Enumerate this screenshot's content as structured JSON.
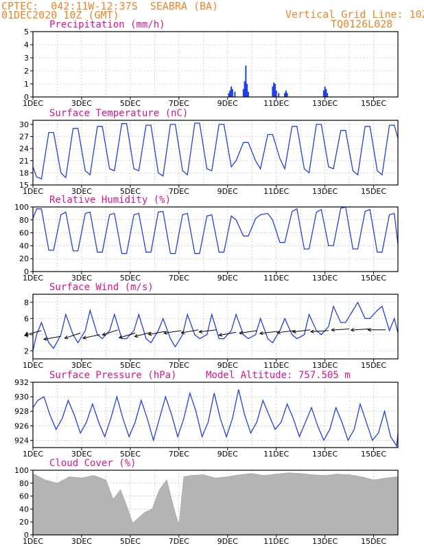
{
  "header": {
    "line1_left": "CPTEC:  042:11W-12:37S  SEABRA (BA)",
    "line2_left": "01DEC2020 10Z (GMT)",
    "line1_right": "Vertical Grid Line: 10Z",
    "line2_right": "TQ0126L028"
  },
  "x_tick_labels": [
    "1DEC",
    "3DEC",
    "5DEC",
    "7DEC",
    "9DEC",
    "11DEC",
    "13DEC",
    "15DEC"
  ],
  "colors": {
    "line": "#1f3fe0",
    "title": "#d4148c",
    "header": "#e8862a",
    "cloud": "#b4b4b4",
    "precip": "#1f3fe0"
  },
  "chart_data": [
    {
      "id": "precip",
      "type": "bar",
      "title": "Precipitation (mm/h)",
      "ylim": [
        0,
        5
      ],
      "yticks": [
        0,
        1,
        2,
        3,
        4,
        5
      ],
      "x_unit": "days since 01DEC 10Z",
      "bars": [
        [
          8.05,
          0.3
        ],
        [
          8.1,
          0.5
        ],
        [
          8.15,
          0.8
        ],
        [
          8.2,
          0.6
        ],
        [
          8.3,
          0.4
        ],
        [
          8.65,
          0.6
        ],
        [
          8.7,
          1.2
        ],
        [
          8.75,
          2.4
        ],
        [
          8.8,
          1.0
        ],
        [
          8.85,
          0.4
        ],
        [
          9.85,
          0.8
        ],
        [
          9.9,
          1.1
        ],
        [
          9.95,
          1.0
        ],
        [
          10.0,
          0.5
        ],
        [
          10.1,
          0.3
        ],
        [
          10.35,
          0.3
        ],
        [
          10.4,
          0.5
        ],
        [
          10.45,
          0.3
        ],
        [
          11.95,
          0.5
        ],
        [
          12.0,
          0.8
        ],
        [
          12.05,
          0.6
        ],
        [
          12.1,
          0.3
        ]
      ]
    },
    {
      "id": "temp",
      "type": "line",
      "title": "Surface Temperature (nC)",
      "ylim": [
        15,
        31
      ],
      "yticks": [
        15,
        18,
        21,
        24,
        27,
        30
      ],
      "x": [
        0,
        0.15,
        0.35,
        0.65,
        0.85,
        1.15,
        1.35,
        1.65,
        1.85,
        2.15,
        2.35,
        2.65,
        2.85,
        3.15,
        3.35,
        3.65,
        3.85,
        4.15,
        4.35,
        4.65,
        4.85,
        5.15,
        5.35,
        5.65,
        5.85,
        6.15,
        6.35,
        6.65,
        6.85,
        7.15,
        7.35,
        7.65,
        7.85,
        8.15,
        8.35,
        8.65,
        8.85,
        9.15,
        9.35,
        9.65,
        9.85,
        10.15,
        10.35,
        10.65,
        10.85,
        11.15,
        11.35,
        11.65,
        11.85,
        12.15,
        12.35,
        12.65,
        12.85,
        13.15,
        13.35,
        13.65,
        13.85,
        14.15,
        14.35,
        14.65,
        14.85,
        15.0
      ],
      "y": [
        19.5,
        17,
        16.5,
        28,
        28,
        18,
        16.8,
        29,
        29,
        18.5,
        17.5,
        29.5,
        29.5,
        19,
        18.5,
        30.2,
        30.2,
        19,
        18.5,
        29.8,
        29.8,
        18,
        17.2,
        30,
        30,
        18.5,
        17.5,
        30.3,
        30.3,
        19,
        18.5,
        30,
        30,
        19.5,
        21,
        25.5,
        25.5,
        21,
        19,
        27.5,
        27.5,
        21.5,
        19,
        29.5,
        29.5,
        19,
        18,
        30,
        30,
        19.5,
        19,
        28.5,
        28.5,
        18.5,
        17.5,
        29.5,
        29.5,
        18.5,
        17.5,
        29.8,
        29.8,
        26.5
      ]
    },
    {
      "id": "rh",
      "type": "line",
      "title": "Relative Humidity (%)",
      "ylim": [
        0,
        100
      ],
      "yticks": [
        0,
        20,
        40,
        60,
        80,
        100
      ],
      "x": [
        0,
        0.15,
        0.35,
        0.65,
        0.85,
        1.15,
        1.35,
        1.65,
        1.85,
        2.15,
        2.35,
        2.65,
        2.85,
        3.15,
        3.35,
        3.65,
        3.85,
        4.15,
        4.35,
        4.65,
        4.85,
        5.15,
        5.35,
        5.65,
        5.85,
        6.15,
        6.35,
        6.65,
        6.85,
        7.15,
        7.35,
        7.65,
        7.85,
        8.15,
        8.35,
        8.65,
        8.85,
        9.15,
        9.35,
        9.65,
        9.85,
        10.15,
        10.35,
        10.65,
        10.85,
        11.15,
        11.35,
        11.65,
        11.85,
        12.15,
        12.35,
        12.65,
        12.85,
        13.15,
        13.35,
        13.65,
        13.85,
        14.15,
        14.35,
        14.65,
        14.85,
        15.0
      ],
      "y": [
        82,
        97,
        97,
        33,
        33,
        88,
        92,
        32,
        32,
        90,
        92,
        30,
        30,
        88,
        90,
        28,
        28,
        88,
        90,
        30,
        30,
        92,
        93,
        28,
        28,
        88,
        90,
        28,
        28,
        86,
        88,
        30,
        30,
        86,
        80,
        55,
        55,
        82,
        88,
        90,
        80,
        45,
        45,
        93,
        97,
        35,
        35,
        92,
        96,
        40,
        40,
        98,
        100,
        35,
        35,
        93,
        96,
        30,
        30,
        88,
        90,
        42
      ]
    },
    {
      "id": "wind",
      "type": "line",
      "title": "Surface Wind (m/s)",
      "ylim": [
        1,
        9
      ],
      "yticks": [
        2,
        4,
        6,
        8
      ],
      "x": [
        0,
        0.15,
        0.35,
        0.65,
        0.85,
        1.15,
        1.35,
        1.65,
        1.85,
        2.15,
        2.35,
        2.65,
        2.85,
        3.15,
        3.35,
        3.65,
        3.85,
        4.15,
        4.35,
        4.65,
        4.85,
        5.15,
        5.35,
        5.65,
        5.85,
        6.15,
        6.35,
        6.65,
        6.85,
        7.15,
        7.35,
        7.65,
        7.85,
        8.15,
        8.35,
        8.65,
        8.85,
        9.15,
        9.35,
        9.65,
        9.85,
        10.15,
        10.35,
        10.65,
        10.85,
        11.15,
        11.35,
        11.65,
        11.85,
        12.15,
        12.35,
        12.65,
        12.85,
        13.15,
        13.35,
        13.65,
        13.85,
        14.15,
        14.35,
        14.65,
        14.85,
        15.0
      ],
      "y": [
        2,
        4,
        5.5,
        3,
        2.3,
        4,
        6.5,
        4,
        3,
        4.5,
        7,
        4,
        3.5,
        4.5,
        6.5,
        3.5,
        3.5,
        4.5,
        6.5,
        3.5,
        3,
        4.5,
        6,
        3.5,
        2.5,
        4,
        6.5,
        4,
        3.5,
        4,
        6.5,
        3.5,
        3.5,
        4.5,
        6.5,
        4,
        3.5,
        4,
        6,
        3.5,
        3,
        4.5,
        6,
        4,
        3.5,
        4,
        6.5,
        4.5,
        4,
        5,
        7.5,
        5.5,
        5.5,
        7,
        8,
        6,
        6,
        7,
        7.5,
        4.5,
        6,
        4.2
      ],
      "vectors": [
        {
          "x": 0.35,
          "y": 4.5,
          "u": -1,
          "v": -0.45
        },
        {
          "x": 1.15,
          "y": 3.8,
          "u": -1,
          "v": -0.3
        },
        {
          "x": 1.95,
          "y": 4.2,
          "u": -1,
          "v": -0.55
        },
        {
          "x": 2.75,
          "y": 4.0,
          "u": -1,
          "v": -0.35
        },
        {
          "x": 3.5,
          "y": 4.6,
          "u": -1,
          "v": -0.55
        },
        {
          "x": 4.2,
          "y": 4.2,
          "u": -1,
          "v": -0.5
        },
        {
          "x": 4.85,
          "y": 4.3,
          "u": -1,
          "v": -0.45
        },
        {
          "x": 5.45,
          "y": 4.4,
          "u": -1,
          "v": -0.3
        },
        {
          "x": 6.1,
          "y": 4.5,
          "u": -1,
          "v": -0.25
        },
        {
          "x": 6.8,
          "y": 4.6,
          "u": -1,
          "v": -0.3
        },
        {
          "x": 7.55,
          "y": 4.6,
          "u": -1,
          "v": -0.2
        },
        {
          "x": 8.35,
          "y": 4.3,
          "u": -1,
          "v": -0.3
        },
        {
          "x": 9.2,
          "y": 4.5,
          "u": -1,
          "v": -0.25
        },
        {
          "x": 10.05,
          "y": 4.4,
          "u": -1,
          "v": -0.2
        },
        {
          "x": 10.75,
          "y": 4.5,
          "u": -1,
          "v": -0.2
        },
        {
          "x": 11.4,
          "y": 4.6,
          "u": -1,
          "v": -0.2
        },
        {
          "x": 12.15,
          "y": 4.5,
          "u": -1,
          "v": -0.1
        },
        {
          "x": 13.0,
          "y": 4.7,
          "u": -1,
          "v": -0.1
        },
        {
          "x": 13.8,
          "y": 4.7,
          "u": -1,
          "v": -0.1
        },
        {
          "x": 14.5,
          "y": 4.6,
          "u": -1,
          "v": 0
        }
      ]
    },
    {
      "id": "pressure",
      "type": "line",
      "title": "Surface Pressure (hPa)",
      "extra_text": "Model Altitude: 757.505 m",
      "ylim": [
        923,
        932
      ],
      "yticks": [
        924,
        926,
        928,
        930,
        932
      ],
      "x": [
        0,
        0.2,
        0.45,
        0.7,
        0.95,
        1.2,
        1.45,
        1.7,
        1.95,
        2.2,
        2.45,
        2.7,
        2.95,
        3.2,
        3.45,
        3.7,
        3.95,
        4.2,
        4.45,
        4.7,
        4.95,
        5.2,
        5.45,
        5.7,
        5.95,
        6.2,
        6.45,
        6.7,
        6.95,
        7.2,
        7.45,
        7.7,
        7.95,
        8.2,
        8.45,
        8.7,
        8.95,
        9.2,
        9.45,
        9.7,
        9.95,
        10.2,
        10.45,
        10.7,
        10.95,
        11.2,
        11.45,
        11.7,
        11.95,
        12.2,
        12.45,
        12.7,
        12.95,
        13.2,
        13.45,
        13.7,
        13.95,
        14.2,
        14.45,
        14.7,
        14.95,
        15.0
      ],
      "y": [
        928.5,
        929.5,
        930,
        927.5,
        925.5,
        927,
        929.5,
        927.5,
        925,
        926.5,
        929,
        926.5,
        924.5,
        927,
        930,
        927,
        924.5,
        926.5,
        929.5,
        927,
        924,
        927,
        930,
        927.5,
        924.5,
        927,
        930.5,
        928,
        924.5,
        926.5,
        930.5,
        927,
        924.5,
        927,
        931,
        927.5,
        925,
        926.5,
        929.5,
        927.5,
        925.5,
        926.5,
        929,
        927,
        924.5,
        926.5,
        928.5,
        926,
        924,
        925.5,
        928.5,
        926.5,
        924,
        925.5,
        929,
        926.5,
        924,
        925,
        928,
        924.5,
        923.2,
        925
      ]
    },
    {
      "id": "cloud",
      "type": "area",
      "title": "Cloud Cover (%)",
      "ylim": [
        0,
        100
      ],
      "yticks": [
        0,
        20,
        40,
        60,
        80,
        100
      ],
      "x": [
        0,
        0.5,
        1.0,
        1.5,
        2.0,
        2.5,
        3.0,
        3.3,
        3.6,
        3.9,
        4.1,
        4.3,
        4.6,
        4.9,
        5.2,
        5.5,
        5.8,
        6.0,
        6.2,
        6.5,
        7.0,
        7.5,
        8.0,
        8.5,
        9.0,
        9.5,
        10.0,
        10.5,
        11.0,
        11.5,
        12.0,
        12.5,
        13.0,
        13.5,
        14.0,
        14.5,
        15.0
      ],
      "y": [
        95,
        85,
        80,
        90,
        88,
        92,
        85,
        55,
        70,
        40,
        18,
        25,
        35,
        40,
        70,
        85,
        40,
        15,
        90,
        92,
        93,
        88,
        90,
        93,
        95,
        92,
        94,
        96,
        95,
        93,
        92,
        94,
        93,
        90,
        85,
        88,
        90
      ]
    }
  ]
}
